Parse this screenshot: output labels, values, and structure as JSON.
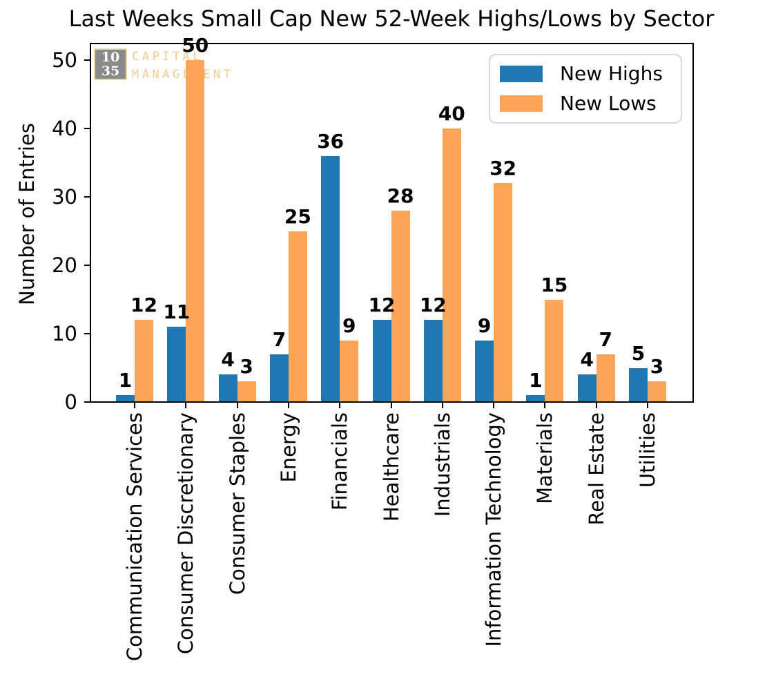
{
  "chart_data": {
    "type": "bar",
    "title": "Last Weeks Small Cap New 52-Week Highs/Lows by Sector",
    "xlabel": "",
    "ylabel": "Number of Entries",
    "categories": [
      "Communication Services",
      "Consumer Discretionary",
      "Consumer Staples",
      "Energy",
      "Financials",
      "Healthcare",
      "Industrials",
      "Information Technology",
      "Materials",
      "Real Estate",
      "Utilities"
    ],
    "series": [
      {
        "name": "New Highs",
        "color": "#1f77b4",
        "values": [
          1,
          11,
          4,
          7,
          36,
          12,
          12,
          9,
          1,
          4,
          5
        ]
      },
      {
        "name": "New Lows",
        "color": "#fca556",
        "values": [
          12,
          50,
          3,
          25,
          9,
          28,
          40,
          32,
          15,
          7,
          3
        ]
      }
    ],
    "yticks": [
      0,
      10,
      20,
      30,
      40,
      50
    ],
    "ylim": [
      0,
      52.6
    ],
    "grid": false,
    "legend_position": "upper right",
    "bar_value_labels": true
  },
  "watermark": {
    "badge_line1": "10",
    "badge_line2": "35",
    "label_line1": "CAPITAL",
    "label_line2": "MANAGEMENT"
  }
}
